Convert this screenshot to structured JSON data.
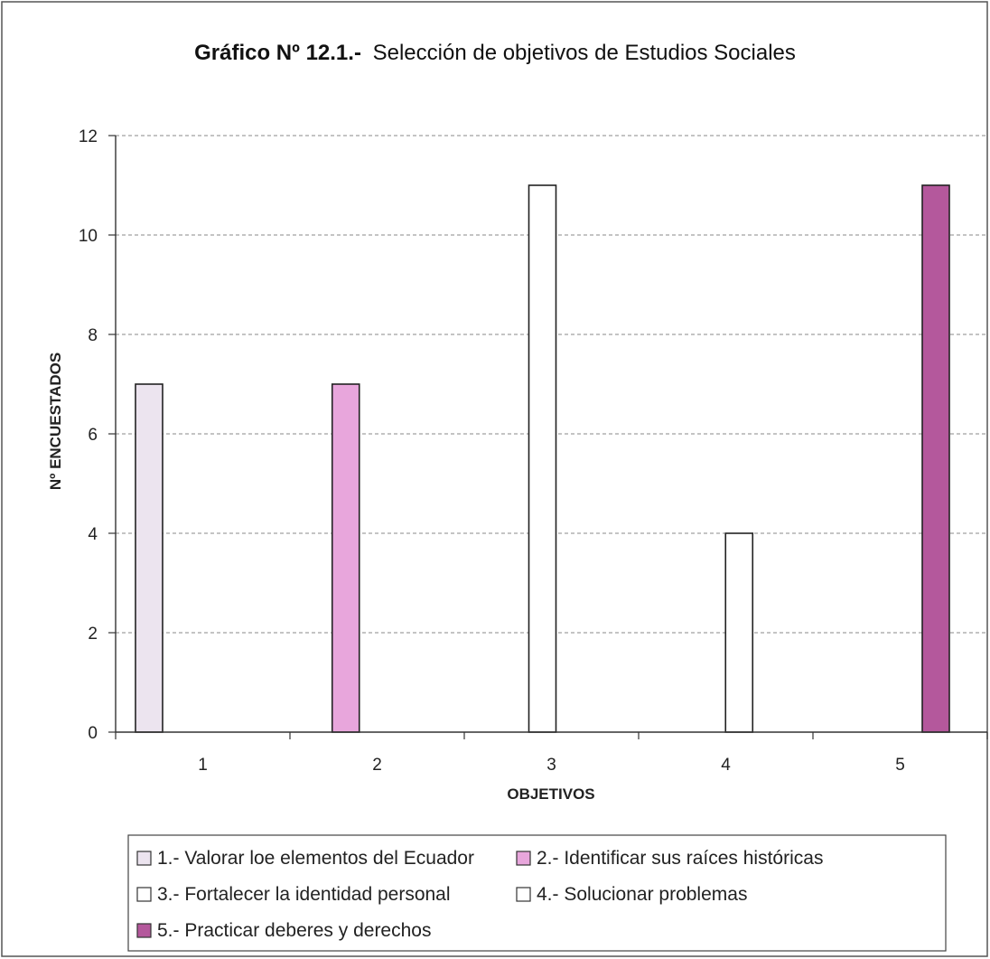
{
  "chart_data": {
    "type": "bar",
    "title": "Gráfico Nº 12.1.-",
    "subtitle": "Selección de objetivos de Estudios Sociales",
    "xlabel": "OBJETIVOS",
    "ylabel": "Nº ENCUESTADOS",
    "ylim": [
      0,
      12
    ],
    "yticks": [
      "0",
      "2",
      "4",
      "6",
      "8",
      "10",
      "12"
    ],
    "categories": [
      "1",
      "2",
      "3",
      "4",
      "5"
    ],
    "grid": true,
    "legend_position": "bottom",
    "series": [
      {
        "name": "1.- Valorar loe elementos del Ecuador",
        "color": "#ece4ef",
        "values": [
          7,
          0,
          0,
          0,
          0
        ]
      },
      {
        "name": "2.- Identificar sus raíces históricas",
        "color": "#e8a6dc",
        "values": [
          0,
          7,
          0,
          0,
          0
        ]
      },
      {
        "name": "3.- Fortalecer la identidad personal",
        "color": "#ffffff",
        "values": [
          0,
          0,
          11,
          0,
          0
        ]
      },
      {
        "name": "4.- Solucionar problemas",
        "color": "#ffffff",
        "values": [
          0,
          0,
          0,
          4,
          0
        ]
      },
      {
        "name": "5.- Practicar deberes y derechos",
        "color": "#b4589c",
        "values": [
          0,
          0,
          0,
          0,
          11
        ]
      }
    ]
  }
}
